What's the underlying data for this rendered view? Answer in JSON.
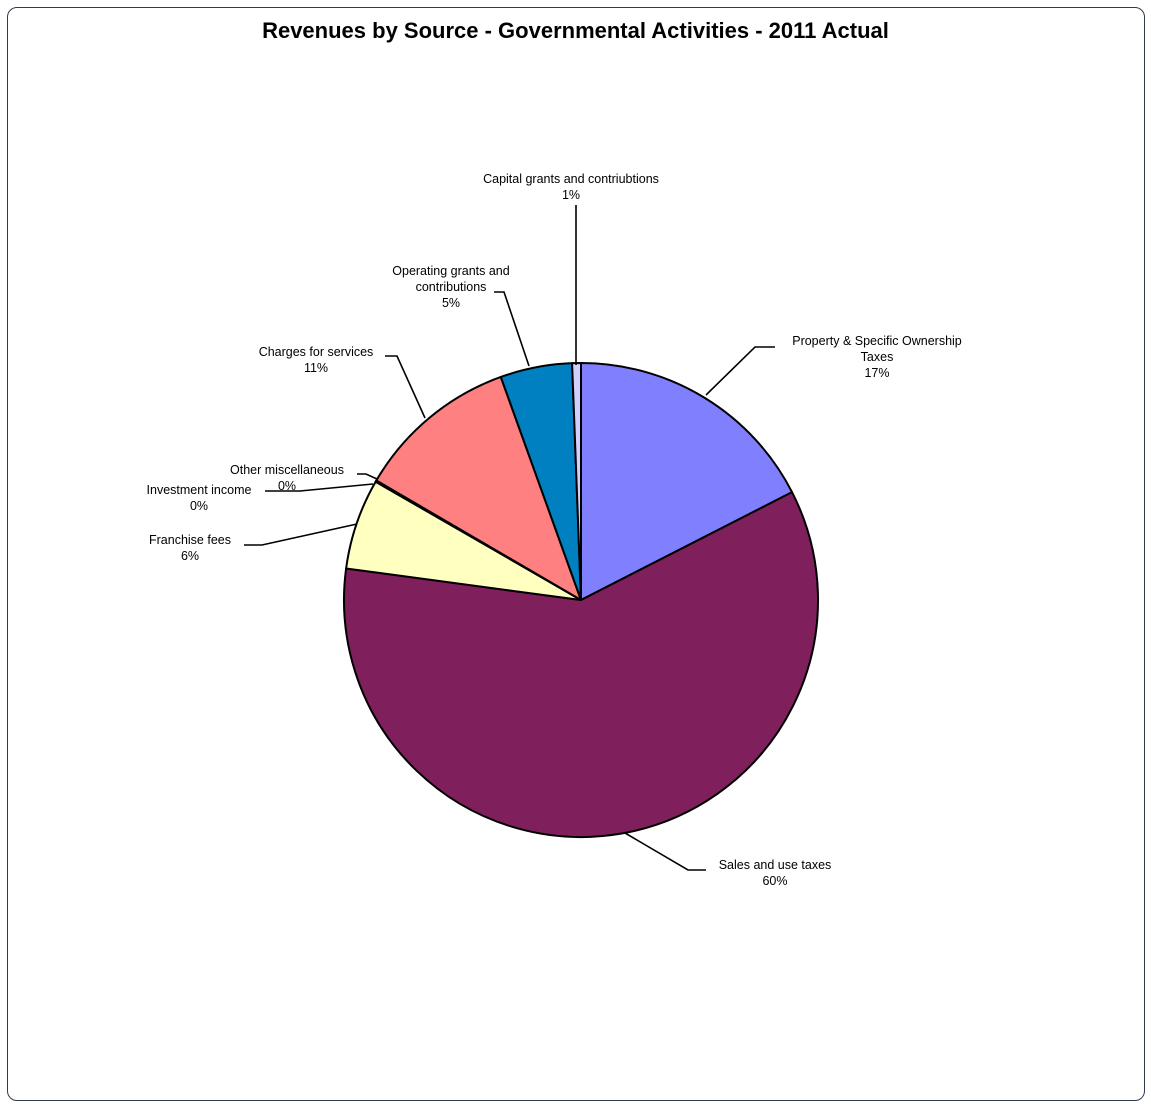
{
  "chart_data": {
    "type": "pie",
    "title": "Revenues by Source - Governmental Activities - 2011 Actual",
    "slices": [
      {
        "label_lines": [
          "Property & Specific Ownership",
          "Taxes"
        ],
        "pct_label": "17%",
        "value": 17.5,
        "color": "#8080ff"
      },
      {
        "label_lines": [
          "Sales and use taxes"
        ],
        "pct_label": "60%",
        "value": 59.7,
        "color": "#7f1f5c"
      },
      {
        "label_lines": [
          "Franchise fees"
        ],
        "pct_label": "6%",
        "value": 6.2,
        "color": "#ffffc0"
      },
      {
        "label_lines": [
          "Investment income"
        ],
        "pct_label": "0%",
        "value": 0.05,
        "color": "#a0e0e0"
      },
      {
        "label_lines": [
          "Other miscellaneous"
        ],
        "pct_label": "0%",
        "value": 0.05,
        "color": "#606060"
      },
      {
        "label_lines": [
          "Charges for services"
        ],
        "pct_label": "11%",
        "value": 11.1,
        "color": "#ff8080"
      },
      {
        "label_lines": [
          "Operating grants and",
          "contributions"
        ],
        "pct_label": "5%",
        "value": 4.9,
        "color": "#0080c0"
      },
      {
        "label_lines": [
          "Capital grants and contriubtions"
        ],
        "pct_label": "1%",
        "value": 0.6,
        "color": "#d0d0ff"
      }
    ]
  }
}
